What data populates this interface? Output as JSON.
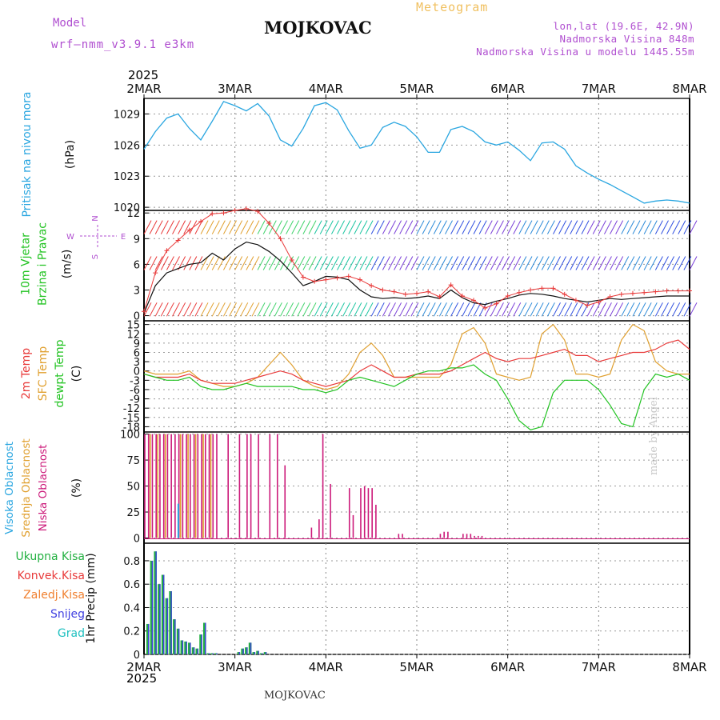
{
  "header": {
    "model_label": "Model",
    "model_name": "wrf—nmm_v3.9.1 e3km",
    "title": "MOJKOVAC",
    "subtitle": "Meteogram",
    "lonlat": "lon,lat (19.6E, 42.9N)",
    "elevation": "Nadmorska Visina 848m",
    "model_elevation": "Nadmorska Visina u modelu 1445.55m",
    "footer_title": "MOJKOVAC",
    "watermark": "made by Angel",
    "year_top": "2025",
    "year_bottom": "2025"
  },
  "colors": {
    "pressure": "#2aa6e0",
    "wind_speed": "#111111",
    "gust": "#e83a3a",
    "temp2m": "#e83a3a",
    "sfc_temp": "#e0a030",
    "dewpoint": "#22c322",
    "cloud_high": "#2aa6e0",
    "cloud_mid": "#e0a030",
    "cloud_low": "#cc1a7a",
    "precip_total": "#22b040",
    "precip_conv": "#e83a3a",
    "precip_frozen": "#f08030",
    "precip_snow": "#4040e0",
    "precip_hail": "#20c0c0"
  },
  "chart_data": [
    {
      "type": "line",
      "id": "pressure",
      "ylabel_lines": [
        "Pritisak na nivou mora"
      ],
      "unit": "(hPa)",
      "x_hours": [
        0,
        3,
        6,
        9,
        12,
        15,
        18,
        21,
        24,
        27,
        30,
        33,
        36,
        39,
        42,
        45,
        48,
        51,
        54,
        57,
        60,
        63,
        66,
        69,
        72,
        75,
        78,
        81,
        84,
        87,
        90,
        93,
        96,
        99,
        102,
        105,
        108,
        111,
        114,
        117,
        120,
        123,
        126,
        129,
        132,
        135,
        138,
        141,
        144
      ],
      "values": [
        1025.6,
        1027.3,
        1028.6,
        1029.0,
        1027.6,
        1026.5,
        1028.3,
        1030.2,
        1029.8,
        1029.3,
        1030.0,
        1028.8,
        1026.5,
        1025.9,
        1027.6,
        1029.8,
        1030.1,
        1029.4,
        1027.4,
        1025.7,
        1026.0,
        1027.7,
        1028.2,
        1027.8,
        1026.8,
        1025.3,
        1025.3,
        1027.5,
        1027.8,
        1027.3,
        1026.3,
        1026.0,
        1026.3,
        1025.5,
        1024.5,
        1026.2,
        1026.3,
        1025.6,
        1024.0,
        1023.3,
        1022.7,
        1022.2,
        1021.6,
        1021.0,
        1020.4,
        1020.6,
        1020.7,
        1020.6,
        1020.4
      ],
      "ylim": [
        1019.7,
        1030.5
      ],
      "yticks": [
        1020,
        1023,
        1026,
        1029
      ]
    },
    {
      "type": "line",
      "id": "wind",
      "ylabel_lines": [
        "10m Vjetar",
        "Brzina i Pravac"
      ],
      "unit": "(m/s)",
      "compass": [
        "N",
        "S",
        "W",
        "E"
      ],
      "x_hours": [
        0,
        3,
        6,
        9,
        12,
        15,
        18,
        21,
        24,
        27,
        30,
        33,
        36,
        39,
        42,
        45,
        48,
        51,
        54,
        57,
        60,
        63,
        66,
        69,
        72,
        75,
        78,
        81,
        84,
        87,
        90,
        93,
        96,
        99,
        102,
        105,
        108,
        111,
        114,
        117,
        120,
        123,
        126,
        129,
        132,
        135,
        138,
        141,
        144
      ],
      "speed": [
        0.3,
        3.5,
        5.0,
        5.5,
        6.0,
        6.2,
        7.3,
        6.5,
        7.8,
        8.6,
        8.3,
        7.5,
        6.4,
        5.0,
        3.5,
        4.0,
        4.6,
        4.5,
        4.2,
        3.0,
        2.2,
        2.0,
        2.1,
        2.0,
        2.1,
        2.3,
        2.0,
        3.0,
        2.1,
        1.5,
        1.3,
        1.7,
        2.0,
        2.4,
        2.6,
        2.5,
        2.3,
        2.0,
        1.8,
        1.6,
        1.8,
        2.0,
        1.9,
        2.0,
        2.1,
        2.2,
        2.3,
        2.3,
        2.3
      ],
      "gust": [
        0.5,
        5.0,
        7.6,
        8.8,
        10.0,
        11.0,
        11.9,
        12.0,
        12.3,
        12.5,
        12.2,
        10.8,
        9.0,
        6.5,
        4.5,
        4.0,
        4.2,
        4.4,
        4.6,
        4.2,
        3.5,
        3.0,
        2.8,
        2.5,
        2.6,
        2.8,
        2.2,
        3.6,
        2.3,
        1.8,
        0.9,
        1.4,
        2.3,
        2.7,
        3.0,
        3.2,
        3.2,
        2.5,
        1.8,
        1.2,
        1.6,
        2.2,
        2.5,
        2.6,
        2.7,
        2.8,
        2.9,
        2.9,
        2.9
      ],
      "ylim": [
        -0.6,
        12.3
      ],
      "yticks": [
        0,
        3,
        6,
        9,
        12
      ]
    },
    {
      "type": "line",
      "id": "temperature",
      "ylabel_lines": [
        "2m Temp",
        "SFC Temp",
        "dewpt Temp"
      ],
      "unit": "(C)",
      "x_hours": [
        0,
        3,
        6,
        9,
        12,
        15,
        18,
        21,
        24,
        27,
        30,
        33,
        36,
        39,
        42,
        45,
        48,
        51,
        54,
        57,
        60,
        63,
        66,
        69,
        72,
        75,
        78,
        81,
        84,
        87,
        90,
        93,
        96,
        99,
        102,
        105,
        108,
        111,
        114,
        117,
        120,
        123,
        126,
        129,
        132,
        135,
        138,
        141,
        144
      ],
      "temp2m": [
        -1,
        -2,
        -2,
        -2,
        -1,
        -3,
        -4,
        -4,
        -4,
        -3,
        -2,
        -1,
        0,
        -1,
        -3,
        -4,
        -5,
        -4,
        -3,
        0,
        2,
        0,
        -2,
        -2,
        -1,
        -1,
        -1,
        0,
        2,
        4,
        6,
        4,
        3,
        4,
        4,
        5,
        6,
        7,
        5,
        5,
        3,
        4,
        5,
        6,
        6,
        7,
        9,
        10,
        7
      ],
      "sfc_temp": [
        0,
        -1,
        -1,
        -1,
        0,
        -3,
        -4,
        -5,
        -5,
        -4,
        -2,
        2,
        6,
        2,
        -3,
        -5,
        -6,
        -5,
        -1,
        6,
        9,
        5,
        -2,
        -2,
        -2,
        -2,
        -2,
        2,
        12,
        14,
        9,
        -1,
        -2,
        -3,
        -2,
        12,
        15,
        10,
        -1,
        -1,
        -2,
        -1,
        10,
        15,
        13,
        3,
        0,
        -1,
        -1
      ],
      "dewpoint": [
        -1,
        -2,
        -3,
        -3,
        -2,
        -5,
        -6,
        -6,
        -5,
        -4,
        -5,
        -5,
        -5,
        -5,
        -6,
        -6,
        -7,
        -6,
        -3,
        -2,
        -3,
        -4,
        -5,
        -3,
        -1,
        0,
        0,
        1,
        1,
        2,
        -1,
        -3,
        -9,
        -16,
        -19,
        -18,
        -7,
        -3,
        -3,
        -3,
        -6,
        -11,
        -17,
        -18,
        -6,
        -1,
        -2,
        -1,
        -3
      ],
      "ylim": [
        -19.7,
        16.2
      ],
      "yticks": [
        15,
        12,
        9,
        6,
        3,
        0,
        -3,
        -6,
        -9,
        -12,
        -15,
        -18
      ]
    },
    {
      "type": "bar",
      "id": "clouds",
      "ylabel_lines": [
        "Visoka Oblacnost",
        "Srednja Oblacnost",
        "Niska Oblacnost"
      ],
      "unit": "(%)",
      "low_hours": [
        0,
        1,
        2,
        3,
        4,
        5,
        6,
        7,
        8,
        9,
        10,
        11,
        12,
        13,
        14,
        15,
        16,
        17,
        18,
        19,
        22,
        25,
        27,
        28,
        30,
        33,
        35,
        37,
        44,
        46,
        47,
        49,
        54,
        55,
        57,
        58,
        59,
        60,
        61,
        67,
        68,
        78,
        79,
        80,
        84,
        85,
        86,
        87,
        88,
        89
      ],
      "low": [
        100,
        100,
        100,
        100,
        100,
        100,
        100,
        100,
        100,
        100,
        100,
        100,
        100,
        100,
        100,
        100,
        100,
        100,
        100,
        100,
        100,
        100,
        100,
        100,
        100,
        100,
        100,
        70,
        10,
        18,
        100,
        52,
        48,
        22,
        48,
        50,
        48,
        48,
        32,
        4,
        4,
        4,
        6,
        6,
        4,
        4,
        4,
        2,
        2,
        2
      ],
      "mid_hours": [
        1,
        3,
        5,
        9,
        11,
        13,
        15,
        17
      ],
      "mid": [
        100,
        100,
        100,
        100,
        100,
        100,
        100,
        100
      ],
      "high_hours": [
        8
      ],
      "high": [
        33
      ],
      "ylim": [
        -5,
        102
      ],
      "yticks": [
        0,
        25,
        50,
        75,
        100
      ]
    },
    {
      "type": "bar",
      "id": "precip",
      "ylabel_lines": [
        "1hr Precip (mm)"
      ],
      "legend": [
        "Ukupna Kisa",
        "Konvek.Kisa",
        "Zaledj.Kisa",
        "Snijeg",
        "Grad"
      ],
      "hours": [
        1,
        2,
        3,
        4,
        5,
        6,
        7,
        8,
        9,
        10,
        11,
        12,
        13,
        14,
        15,
        16,
        17,
        18,
        19,
        25,
        26,
        27,
        28,
        29,
        30,
        31,
        32
      ],
      "values": [
        0.26,
        0.8,
        0.88,
        0.6,
        0.68,
        0.48,
        0.54,
        0.3,
        0.22,
        0.12,
        0.11,
        0.1,
        0.06,
        0.05,
        0.17,
        0.27,
        0.01,
        0.01,
        0.01,
        0.02,
        0.05,
        0.06,
        0.1,
        0.02,
        0.03,
        0.01,
        0.02
      ],
      "ylim": [
        0,
        0.95
      ],
      "yticks": [
        0,
        0.2,
        0.4,
        0.6,
        0.8
      ]
    }
  ],
  "x_axis": {
    "days": [
      "2MAR",
      "3MAR",
      "4MAR",
      "5MAR",
      "6MAR",
      "7MAR",
      "8MAR"
    ],
    "xlim_hours": [
      0,
      144
    ]
  }
}
